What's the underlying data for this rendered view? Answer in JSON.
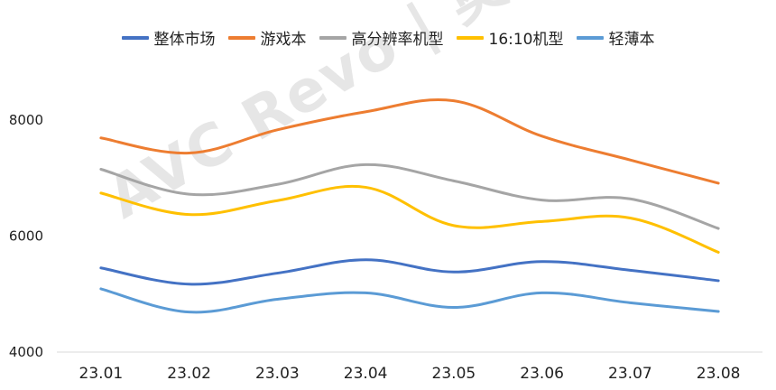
{
  "chart_data": {
    "type": "line",
    "categories": [
      "23.01",
      "23.02",
      "23.03",
      "23.04",
      "23.05",
      "23.06",
      "23.07",
      "23.08"
    ],
    "ylim": [
      4000,
      8900
    ],
    "yticks": [
      4000,
      6000,
      8000
    ],
    "grid": false,
    "legend_position": "top",
    "series": [
      {
        "name": "整体市场",
        "color": "#4472C4",
        "values": [
          5450,
          5170,
          5360,
          5590,
          5380,
          5560,
          5410,
          5230
        ]
      },
      {
        "name": "游戏本",
        "color": "#ED7D31",
        "values": [
          7690,
          7430,
          7830,
          8140,
          8330,
          7720,
          7310,
          6910
        ]
      },
      {
        "name": "高分辨率机型",
        "color": "#A5A5A5",
        "values": [
          7150,
          6720,
          6890,
          7230,
          6950,
          6620,
          6640,
          6130
        ]
      },
      {
        "name": "16:10机型",
        "color": "#FFC000",
        "values": [
          6740,
          6370,
          6610,
          6840,
          6180,
          6250,
          6310,
          5720
        ]
      },
      {
        "name": "轻薄本",
        "color": "#5B9BD5",
        "values": [
          5090,
          4690,
          4910,
          5020,
          4770,
          5020,
          4850,
          4700
        ]
      }
    ]
  },
  "watermark": "AVC Revo | 奥维睿沃"
}
